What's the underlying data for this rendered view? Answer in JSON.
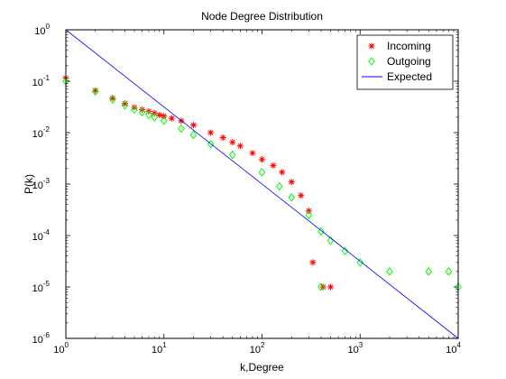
{
  "chart_data": {
    "type": "scatter",
    "title": "Node Degree Distribution",
    "xlabel": "k,Degree",
    "ylabel": "P(k)",
    "xscale": "log",
    "yscale": "log",
    "xlim": [
      1,
      10000
    ],
    "ylim": [
      1e-06,
      1
    ],
    "x_tick_base": "10",
    "x_tick_exponents": [
      "0",
      "1",
      "2",
      "3",
      "4"
    ],
    "y_tick_base": "10",
    "y_tick_exponents": [
      "-6",
      "-5",
      "-4",
      "-3",
      "-2",
      "-1",
      "0"
    ],
    "grid": false,
    "legend": {
      "position": "top-right"
    },
    "series": [
      {
        "name": "Incoming",
        "marker": "asterisk",
        "color": "#ff0000",
        "points": [
          [
            1,
            0.115
          ],
          [
            2,
            0.066
          ],
          [
            3,
            0.047
          ],
          [
            4,
            0.037
          ],
          [
            5,
            0.031
          ],
          [
            6,
            0.028
          ],
          [
            7,
            0.026
          ],
          [
            8,
            0.024
          ],
          [
            9,
            0.022
          ],
          [
            10,
            0.021
          ],
          [
            12,
            0.019
          ],
          [
            15,
            0.017
          ],
          [
            20,
            0.014
          ],
          [
            30,
            0.01
          ],
          [
            40,
            0.008
          ],
          [
            50,
            0.0065
          ],
          [
            60,
            0.0055
          ],
          [
            80,
            0.004
          ],
          [
            100,
            0.003
          ],
          [
            130,
            0.0023
          ],
          [
            160,
            0.0017
          ],
          [
            200,
            0.0011
          ],
          [
            250,
            0.0006
          ],
          [
            300,
            0.0003
          ],
          [
            330,
            3e-05
          ],
          [
            420,
            1e-05
          ],
          [
            500,
            1e-05
          ]
        ]
      },
      {
        "name": "Outgoing",
        "marker": "diamond",
        "color": "#00ff00",
        "points": [
          [
            1,
            0.1
          ],
          [
            2,
            0.063
          ],
          [
            3,
            0.044
          ],
          [
            4,
            0.034
          ],
          [
            5,
            0.028
          ],
          [
            6,
            0.025
          ],
          [
            7,
            0.022
          ],
          [
            8,
            0.02
          ],
          [
            10,
            0.017
          ],
          [
            15,
            0.012
          ],
          [
            20,
            0.009
          ],
          [
            30,
            0.006
          ],
          [
            50,
            0.0037
          ],
          [
            100,
            0.0017
          ],
          [
            150,
            0.0009
          ],
          [
            200,
            0.00055
          ],
          [
            300,
            0.00025
          ],
          [
            400,
            0.00012
          ],
          [
            500,
            8e-05
          ],
          [
            700,
            5e-05
          ],
          [
            1000,
            3e-05
          ],
          [
            2000,
            2e-05
          ],
          [
            5000,
            2e-05
          ],
          [
            8000,
            2e-05
          ],
          [
            400,
            1e-05
          ],
          [
            10000,
            1e-05
          ]
        ]
      },
      {
        "name": "Expected",
        "marker": "line",
        "color": "#0000ff",
        "points": [
          [
            1,
            1
          ],
          [
            10000,
            1e-06
          ]
        ]
      }
    ]
  }
}
